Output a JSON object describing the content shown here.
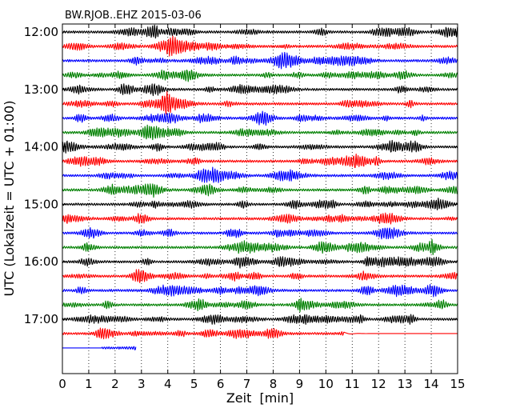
{
  "chart_data": {
    "type": "line",
    "title": "BW.RJOB..EHZ 2015-03-06",
    "xlabel": "Zeit  [min]",
    "ylabel": "UTC (Lokalzeit = UTC + 01:00)",
    "xlim": [
      0,
      15
    ],
    "x_ticks": [
      "0",
      "1",
      "2",
      "3",
      "4",
      "5",
      "6",
      "7",
      "8",
      "9",
      "10",
      "11",
      "12",
      "13",
      "14",
      "15"
    ],
    "y_tick_labels": [
      "12:00",
      "13:00",
      "14:00",
      "15:00",
      "16:00",
      "17:00"
    ],
    "grid": "vertical dotted lines at each minute",
    "line_colors": [
      "#000000",
      "#ff0000",
      "#0000ff",
      "#008000"
    ],
    "rows": [
      {
        "start": "12:00",
        "end_min": 15
      },
      {
        "start": "12:15",
        "end_min": 15
      },
      {
        "start": "12:30",
        "end_min": 15
      },
      {
        "start": "12:45",
        "end_min": 15
      },
      {
        "start": "13:00",
        "end_min": 15
      },
      {
        "start": "13:15",
        "end_min": 15
      },
      {
        "start": "13:30",
        "end_min": 15
      },
      {
        "start": "13:45",
        "end_min": 15
      },
      {
        "start": "14:00",
        "end_min": 15
      },
      {
        "start": "14:15",
        "end_min": 15
      },
      {
        "start": "14:30",
        "end_min": 15
      },
      {
        "start": "14:45",
        "end_min": 15
      },
      {
        "start": "15:00",
        "end_min": 15
      },
      {
        "start": "15:15",
        "end_min": 15
      },
      {
        "start": "15:30",
        "end_min": 15
      },
      {
        "start": "15:45",
        "end_min": 15
      },
      {
        "start": "16:00",
        "end_min": 15
      },
      {
        "start": "16:15",
        "end_min": 15
      },
      {
        "start": "16:30",
        "end_min": 15
      },
      {
        "start": "16:45",
        "end_min": 15
      },
      {
        "start": "17:00",
        "end_min": 15
      },
      {
        "start": "17:15",
        "end_min": 15,
        "activity_end_min": 10.7
      },
      {
        "start": "17:30",
        "end_min": 2.8,
        "activity_start_min": 1.5
      }
    ]
  }
}
